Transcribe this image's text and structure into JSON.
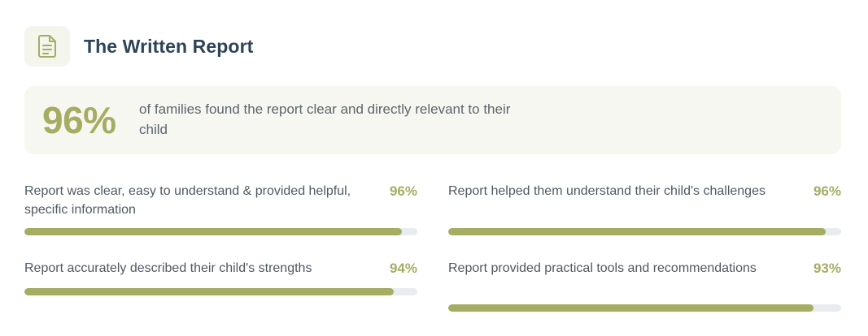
{
  "header": {
    "icon": "document-icon",
    "title": "The Written Report"
  },
  "hero": {
    "percent": "96%",
    "text": "of families found the report clear and directly relevant to their child"
  },
  "stats": [
    {
      "label": "Report was clear, easy to understand & provided helpful, specific information",
      "percent": "96%",
      "value": 96
    },
    {
      "label": "Report helped them understand their child's challenges",
      "percent": "96%",
      "value": 96
    },
    {
      "label": "Report accurately described their child's strengths",
      "percent": "94%",
      "value": 94
    },
    {
      "label": "Report provided practical tools and recommendations",
      "percent": "93%",
      "value": 93
    }
  ],
  "colors": {
    "accent": "#a5ad63",
    "title": "#2e4456",
    "track": "#e8ecef",
    "panel": "#f6f7f0"
  }
}
